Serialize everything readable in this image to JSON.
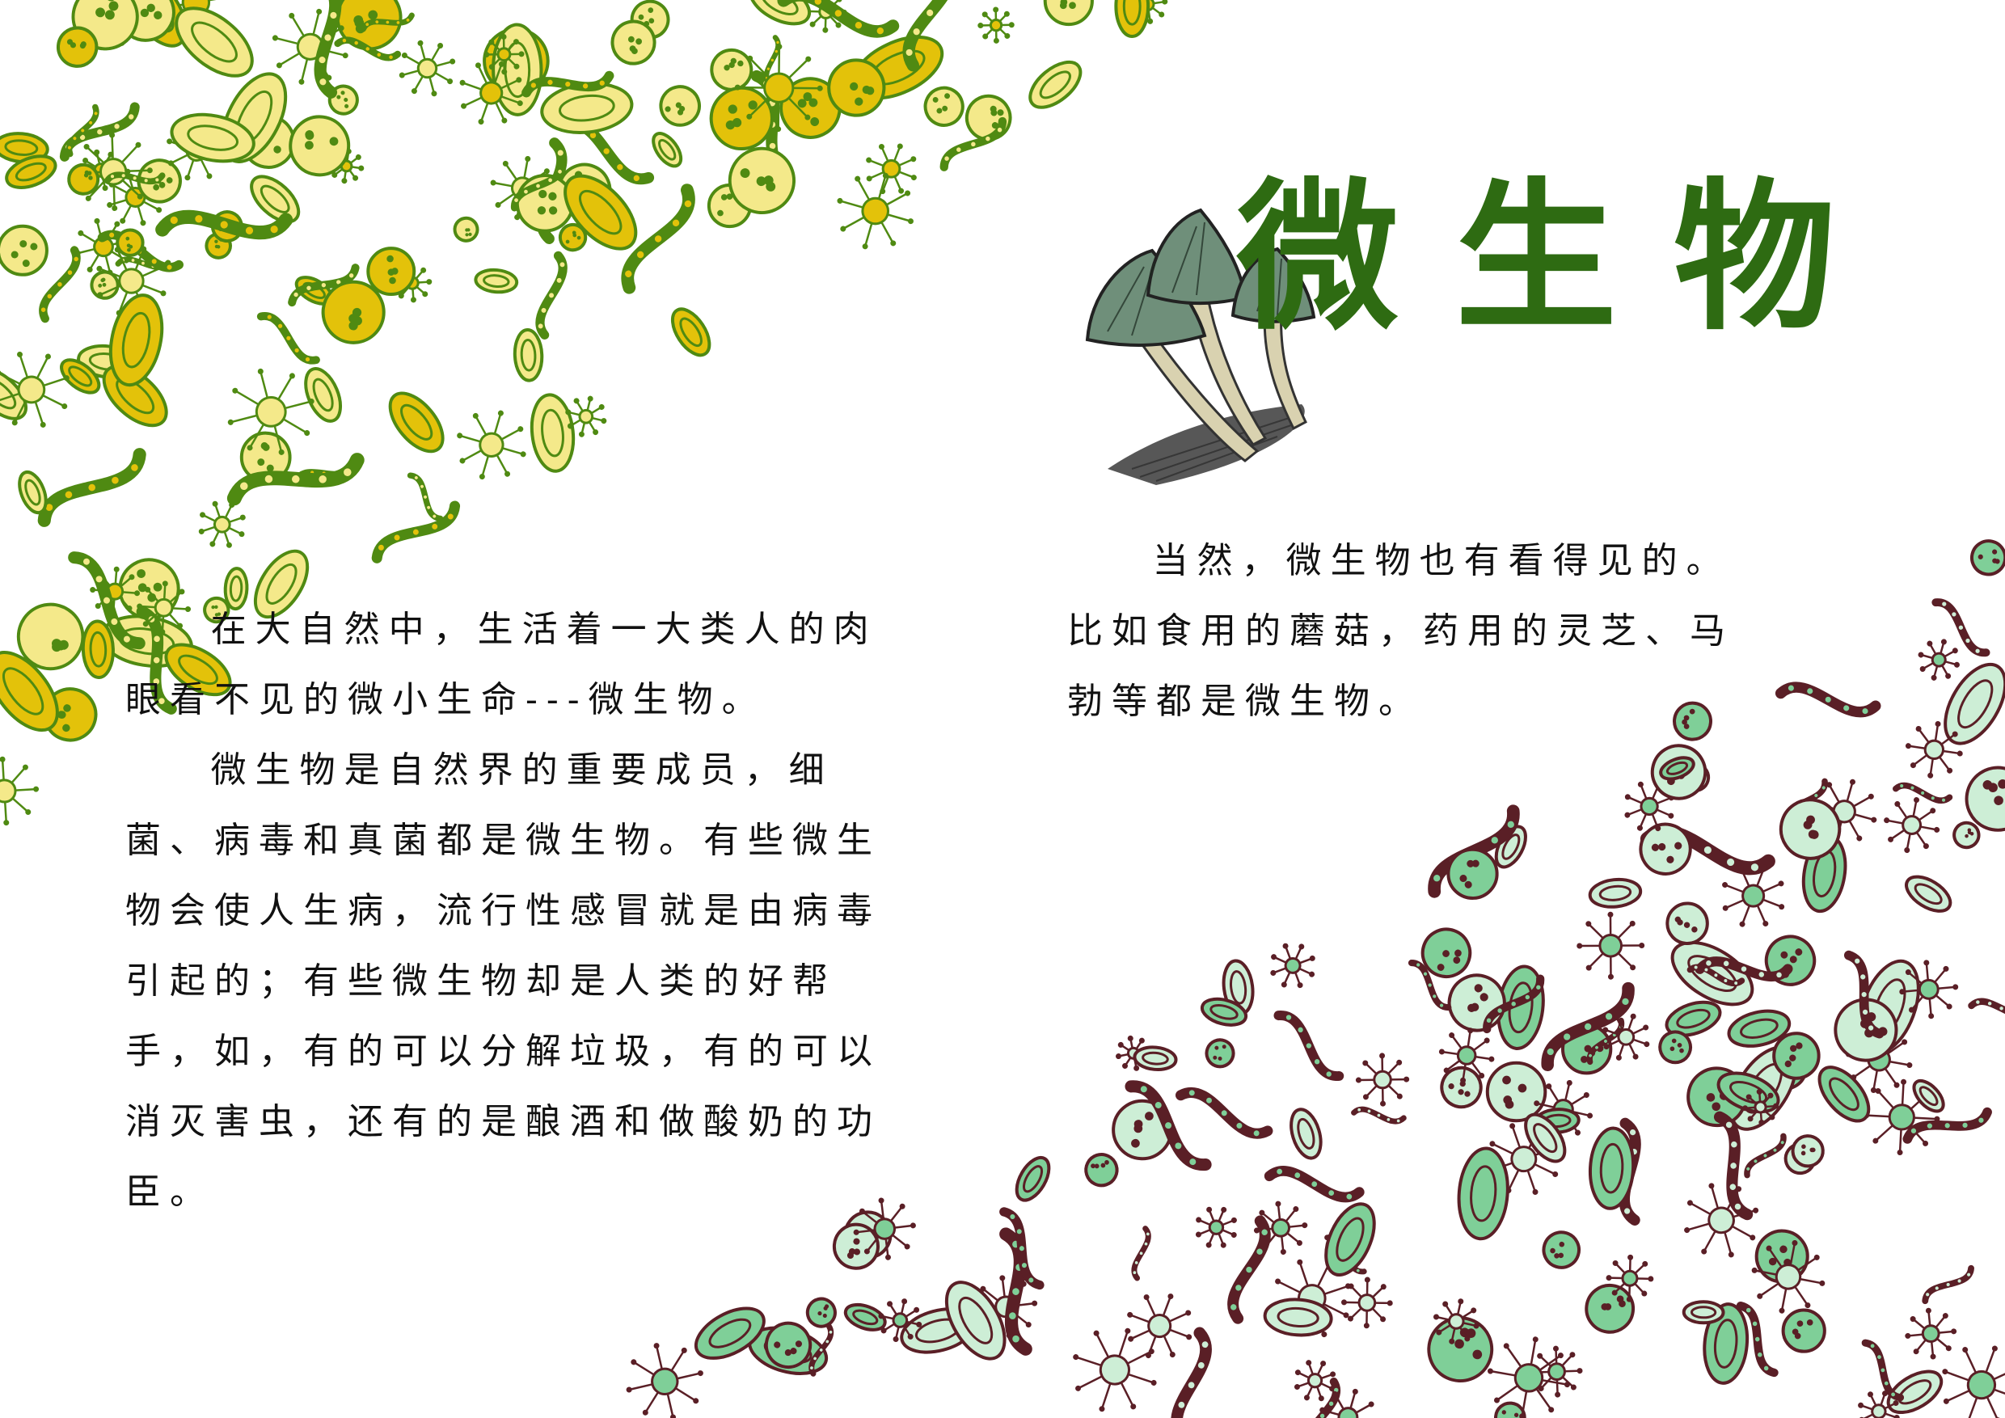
{
  "title": "微生物",
  "paragraphs_left": [
    "在大自然中，生活着一大类人的肉眼看不见的微小生命---微生物。",
    "微生物是自然界的重要成员，细菌、病毒和真菌都是微生物。有些微生物会使人生病，流行性感冒就是由病毒引起的；有些微生物却是人类的好帮手，如，有的可以分解垃圾，有的可以消灭害虫，还有的是酿酒和做酸奶的功臣。"
  ],
  "paragraphs_right": [
    "当然，微生物也有看得见的。比如食用的蘑菇，药用的灵芝、马勃等都是微生物。"
  ],
  "colors": {
    "title": "#2e6b12",
    "microbe_green": "#4f8a12",
    "microbe_yellow": "#e3c20a",
    "microbe_mint": "#7fcf98",
    "microbe_maroon": "#5a1f26",
    "mushroom_cap": "#6f8f7a"
  },
  "icons": [
    "microbe-cluster-top-left",
    "microbe-cluster-bottom-right",
    "mushroom-illustration"
  ]
}
